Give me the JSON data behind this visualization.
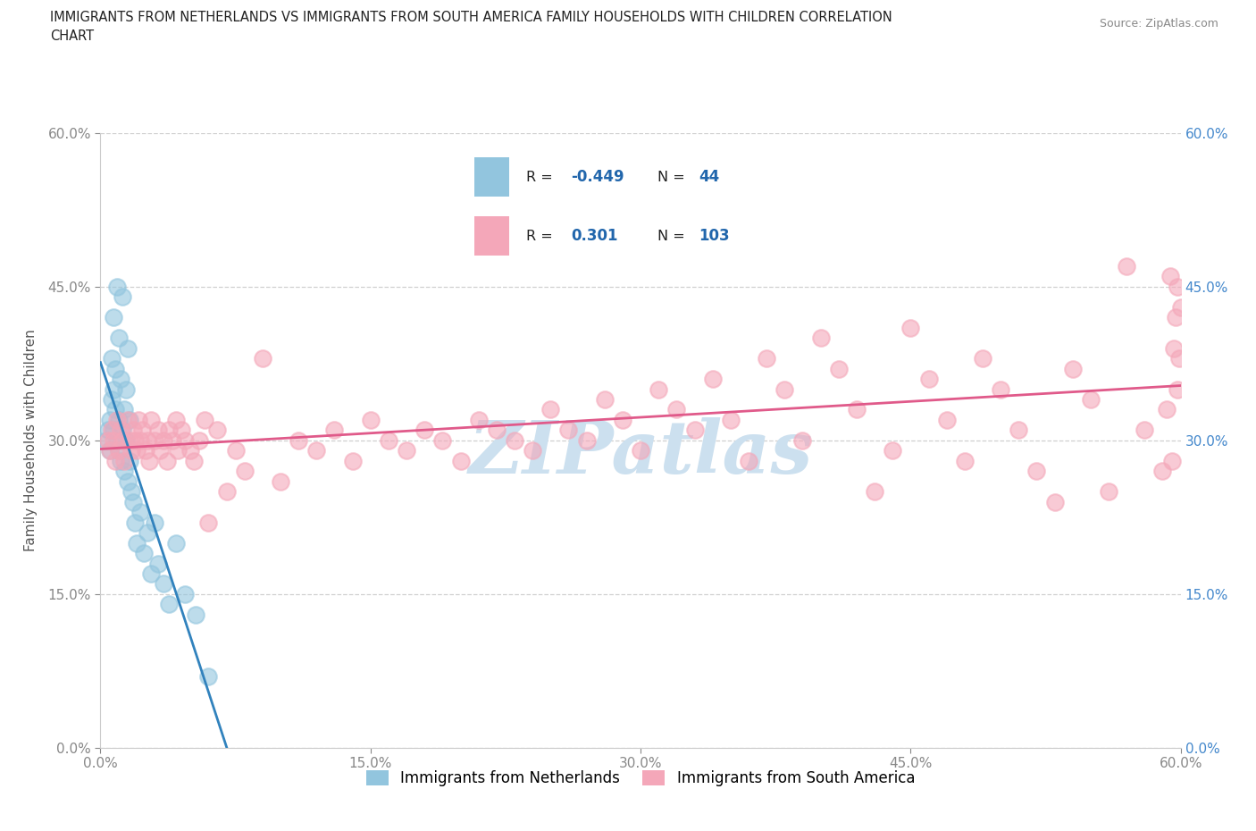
{
  "title_line1": "IMMIGRANTS FROM NETHERLANDS VS IMMIGRANTS FROM SOUTH AMERICA FAMILY HOUSEHOLDS WITH CHILDREN CORRELATION",
  "title_line2": "CHART",
  "source": "Source: ZipAtlas.com",
  "xlabel_blue": "Immigrants from Netherlands",
  "xlabel_pink": "Immigrants from South America",
  "ylabel": "Family Households with Children",
  "xlim": [
    0.0,
    0.6
  ],
  "ylim": [
    0.0,
    0.6
  ],
  "xtick_vals": [
    0.0,
    0.15,
    0.3,
    0.45,
    0.6
  ],
  "ytick_vals": [
    0.0,
    0.15,
    0.3,
    0.45,
    0.6
  ],
  "R_blue": -0.449,
  "N_blue": 44,
  "R_pink": 0.301,
  "N_pink": 103,
  "blue_scatter_color": "#92c5de",
  "pink_scatter_color": "#f4a7b9",
  "blue_line_color": "#3182bd",
  "pink_line_color": "#e05a8a",
  "watermark": "ZIPatlas",
  "watermark_color": "#cce0ef",
  "grid_color": "#d0d0d0",
  "right_tick_color": "#4488cc",
  "blue_x": [
    0.003,
    0.004,
    0.005,
    0.005,
    0.006,
    0.006,
    0.007,
    0.007,
    0.007,
    0.008,
    0.008,
    0.009,
    0.009,
    0.01,
    0.01,
    0.01,
    0.011,
    0.011,
    0.012,
    0.012,
    0.013,
    0.013,
    0.014,
    0.014,
    0.015,
    0.015,
    0.016,
    0.016,
    0.017,
    0.018,
    0.019,
    0.02,
    0.022,
    0.024,
    0.026,
    0.028,
    0.03,
    0.032,
    0.035,
    0.038,
    0.042,
    0.047,
    0.053,
    0.06
  ],
  "blue_y": [
    0.3,
    0.31,
    0.32,
    0.29,
    0.34,
    0.38,
    0.31,
    0.35,
    0.42,
    0.33,
    0.37,
    0.3,
    0.45,
    0.29,
    0.32,
    0.4,
    0.28,
    0.36,
    0.31,
    0.44,
    0.27,
    0.33,
    0.3,
    0.35,
    0.26,
    0.39,
    0.28,
    0.32,
    0.25,
    0.24,
    0.22,
    0.2,
    0.23,
    0.19,
    0.21,
    0.17,
    0.22,
    0.18,
    0.16,
    0.14,
    0.2,
    0.15,
    0.13,
    0.07
  ],
  "pink_x": [
    0.004,
    0.005,
    0.006,
    0.007,
    0.008,
    0.009,
    0.01,
    0.011,
    0.012,
    0.013,
    0.015,
    0.016,
    0.017,
    0.018,
    0.019,
    0.02,
    0.021,
    0.022,
    0.023,
    0.025,
    0.026,
    0.027,
    0.028,
    0.03,
    0.032,
    0.033,
    0.035,
    0.037,
    0.038,
    0.04,
    0.042,
    0.043,
    0.045,
    0.047,
    0.05,
    0.052,
    0.055,
    0.058,
    0.06,
    0.065,
    0.07,
    0.075,
    0.08,
    0.09,
    0.1,
    0.11,
    0.12,
    0.13,
    0.14,
    0.15,
    0.16,
    0.17,
    0.18,
    0.19,
    0.2,
    0.21,
    0.22,
    0.23,
    0.24,
    0.25,
    0.26,
    0.27,
    0.28,
    0.29,
    0.3,
    0.31,
    0.32,
    0.33,
    0.34,
    0.35,
    0.36,
    0.37,
    0.38,
    0.39,
    0.4,
    0.41,
    0.42,
    0.43,
    0.44,
    0.45,
    0.46,
    0.47,
    0.48,
    0.49,
    0.5,
    0.51,
    0.52,
    0.53,
    0.54,
    0.55,
    0.56,
    0.57,
    0.58,
    0.59,
    0.595,
    0.598,
    0.599,
    0.6,
    0.598,
    0.597,
    0.596,
    0.594,
    0.592
  ],
  "pink_y": [
    0.3,
    0.29,
    0.31,
    0.3,
    0.28,
    0.32,
    0.29,
    0.31,
    0.3,
    0.28,
    0.32,
    0.3,
    0.29,
    0.31,
    0.3,
    0.29,
    0.32,
    0.3,
    0.31,
    0.29,
    0.3,
    0.28,
    0.32,
    0.3,
    0.31,
    0.29,
    0.3,
    0.28,
    0.31,
    0.3,
    0.32,
    0.29,
    0.31,
    0.3,
    0.29,
    0.28,
    0.3,
    0.32,
    0.22,
    0.31,
    0.25,
    0.29,
    0.27,
    0.38,
    0.26,
    0.3,
    0.29,
    0.31,
    0.28,
    0.32,
    0.3,
    0.29,
    0.31,
    0.3,
    0.28,
    0.32,
    0.31,
    0.3,
    0.29,
    0.33,
    0.31,
    0.3,
    0.34,
    0.32,
    0.29,
    0.35,
    0.33,
    0.31,
    0.36,
    0.32,
    0.28,
    0.38,
    0.35,
    0.3,
    0.4,
    0.37,
    0.33,
    0.25,
    0.29,
    0.41,
    0.36,
    0.32,
    0.28,
    0.38,
    0.35,
    0.31,
    0.27,
    0.24,
    0.37,
    0.34,
    0.25,
    0.47,
    0.31,
    0.27,
    0.28,
    0.45,
    0.38,
    0.43,
    0.35,
    0.42,
    0.39,
    0.46,
    0.33
  ]
}
